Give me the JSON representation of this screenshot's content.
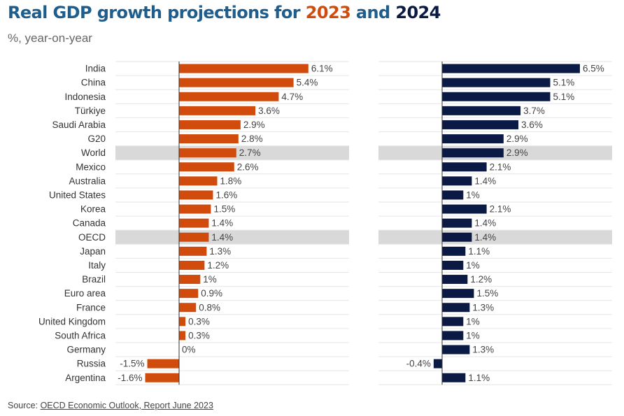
{
  "title": {
    "prefix": "Real GDP growth projections for ",
    "year1": "2023",
    "middle": " and ",
    "year2": "2024"
  },
  "subtitle": "%, year-on-year",
  "source": {
    "label": "Source: ",
    "link_text": "OECD Economic Outlook, Report June 2023"
  },
  "colors": {
    "title": "#1e5d8c",
    "series_2023": "#d14b0c",
    "series_2024": "#0a1a44",
    "highlight": "#d9d9d9"
  },
  "chart_data": {
    "type": "bar",
    "orientation": "horizontal",
    "value_suffix": "%",
    "highlighted_categories": [
      "World",
      "OECD"
    ],
    "categories": [
      "India",
      "China",
      "Indonesia",
      "Türkiye",
      "Saudi Arabia",
      "G20",
      "World",
      "Mexico",
      "Australia",
      "United States",
      "Korea",
      "Canada",
      "OECD",
      "Japan",
      "Italy",
      "Brazil",
      "Euro area",
      "France",
      "United Kingdom",
      "South Africa",
      "Germany",
      "Russia",
      "Argentina"
    ],
    "series": [
      {
        "name": "2023",
        "values": [
          6.1,
          5.4,
          4.7,
          3.6,
          2.9,
          2.8,
          2.7,
          2.6,
          1.8,
          1.6,
          1.5,
          1.4,
          1.4,
          1.3,
          1.2,
          1,
          0.9,
          0.8,
          0.3,
          0.3,
          0,
          -1.5,
          -1.6
        ],
        "labels": [
          "6.1%",
          "5.4%",
          "4.7%",
          "3.6%",
          "2.9%",
          "2.8%",
          "2.7%",
          "2.6%",
          "1.8%",
          "1.6%",
          "1.5%",
          "1.4%",
          "1.4%",
          "1.3%",
          "1.2%",
          "1%",
          "0.9%",
          "0.8%",
          "0.3%",
          "0.3%",
          "0%",
          "-1.5%",
          "-1.6%"
        ]
      },
      {
        "name": "2024",
        "values": [
          6.5,
          5.1,
          5.1,
          3.7,
          3.6,
          2.9,
          2.9,
          2.1,
          1.4,
          1,
          2.1,
          1.4,
          1.4,
          1.1,
          1,
          1.2,
          1.5,
          1.3,
          1,
          1,
          1.3,
          -0.4,
          1.1
        ],
        "labels": [
          "6.5%",
          "5.1%",
          "5.1%",
          "3.7%",
          "3.6%",
          "2.9%",
          "2.9%",
          "2.1%",
          "1.4%",
          "1%",
          "2.1%",
          "1.4%",
          "1.4%",
          "1.1%",
          "1%",
          "1.2%",
          "1.5%",
          "1.3%",
          "1%",
          "1%",
          "1.3%",
          "-0.4%",
          "1.1%"
        ]
      }
    ],
    "grid": true
  }
}
